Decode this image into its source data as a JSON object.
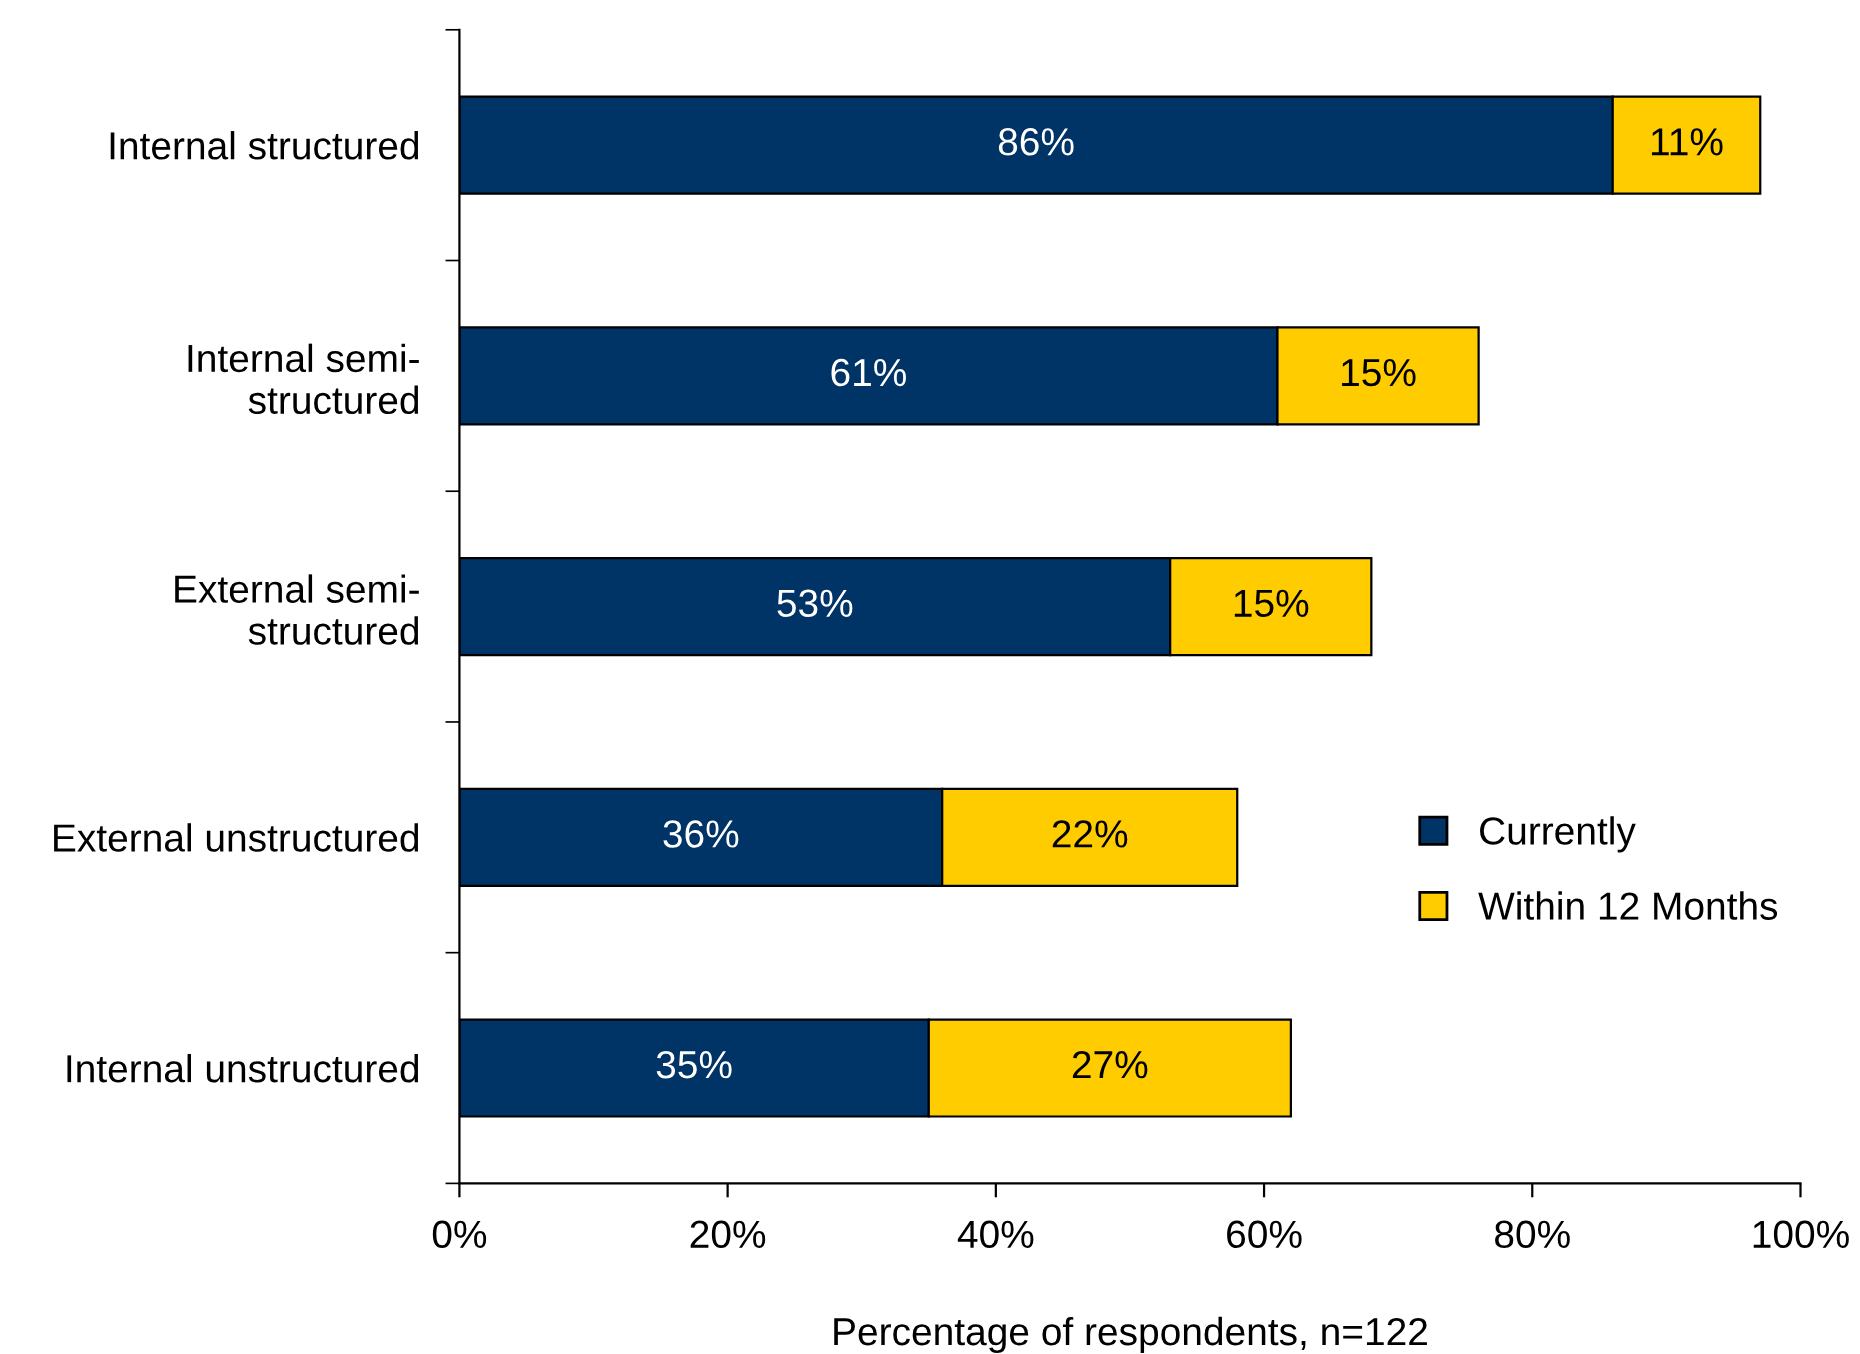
{
  "chart_data": {
    "type": "bar",
    "orientation": "horizontal",
    "stacked": true,
    "xlabel": "Percentage of respondents, n=122",
    "categories": [
      "Internal structured",
      "Internal semi-\nstructured",
      "External semi-\nstructured",
      "External unstructured",
      "Internal unstructured"
    ],
    "series": [
      {
        "name": "Currently",
        "color": "#003366",
        "values": [
          86,
          61,
          53,
          36,
          35
        ],
        "value_labels": [
          "86%",
          "61%",
          "53%",
          "36%",
          "35%"
        ]
      },
      {
        "name": "Within 12 Months",
        "color": "#ffcc00",
        "values": [
          11,
          15,
          15,
          22,
          27
        ],
        "value_labels": [
          "11%",
          "15%",
          "15%",
          "22%",
          "27%"
        ]
      }
    ],
    "xlim": [
      0,
      100
    ],
    "xticks": [
      {
        "value": 0,
        "label": "0%"
      },
      {
        "value": 20,
        "label": "20%"
      },
      {
        "value": 40,
        "label": "40%"
      },
      {
        "value": 60,
        "label": "60%"
      },
      {
        "value": 80,
        "label": "80%"
      },
      {
        "value": 100,
        "label": "100%"
      }
    ],
    "legend": "right",
    "grid": false
  }
}
